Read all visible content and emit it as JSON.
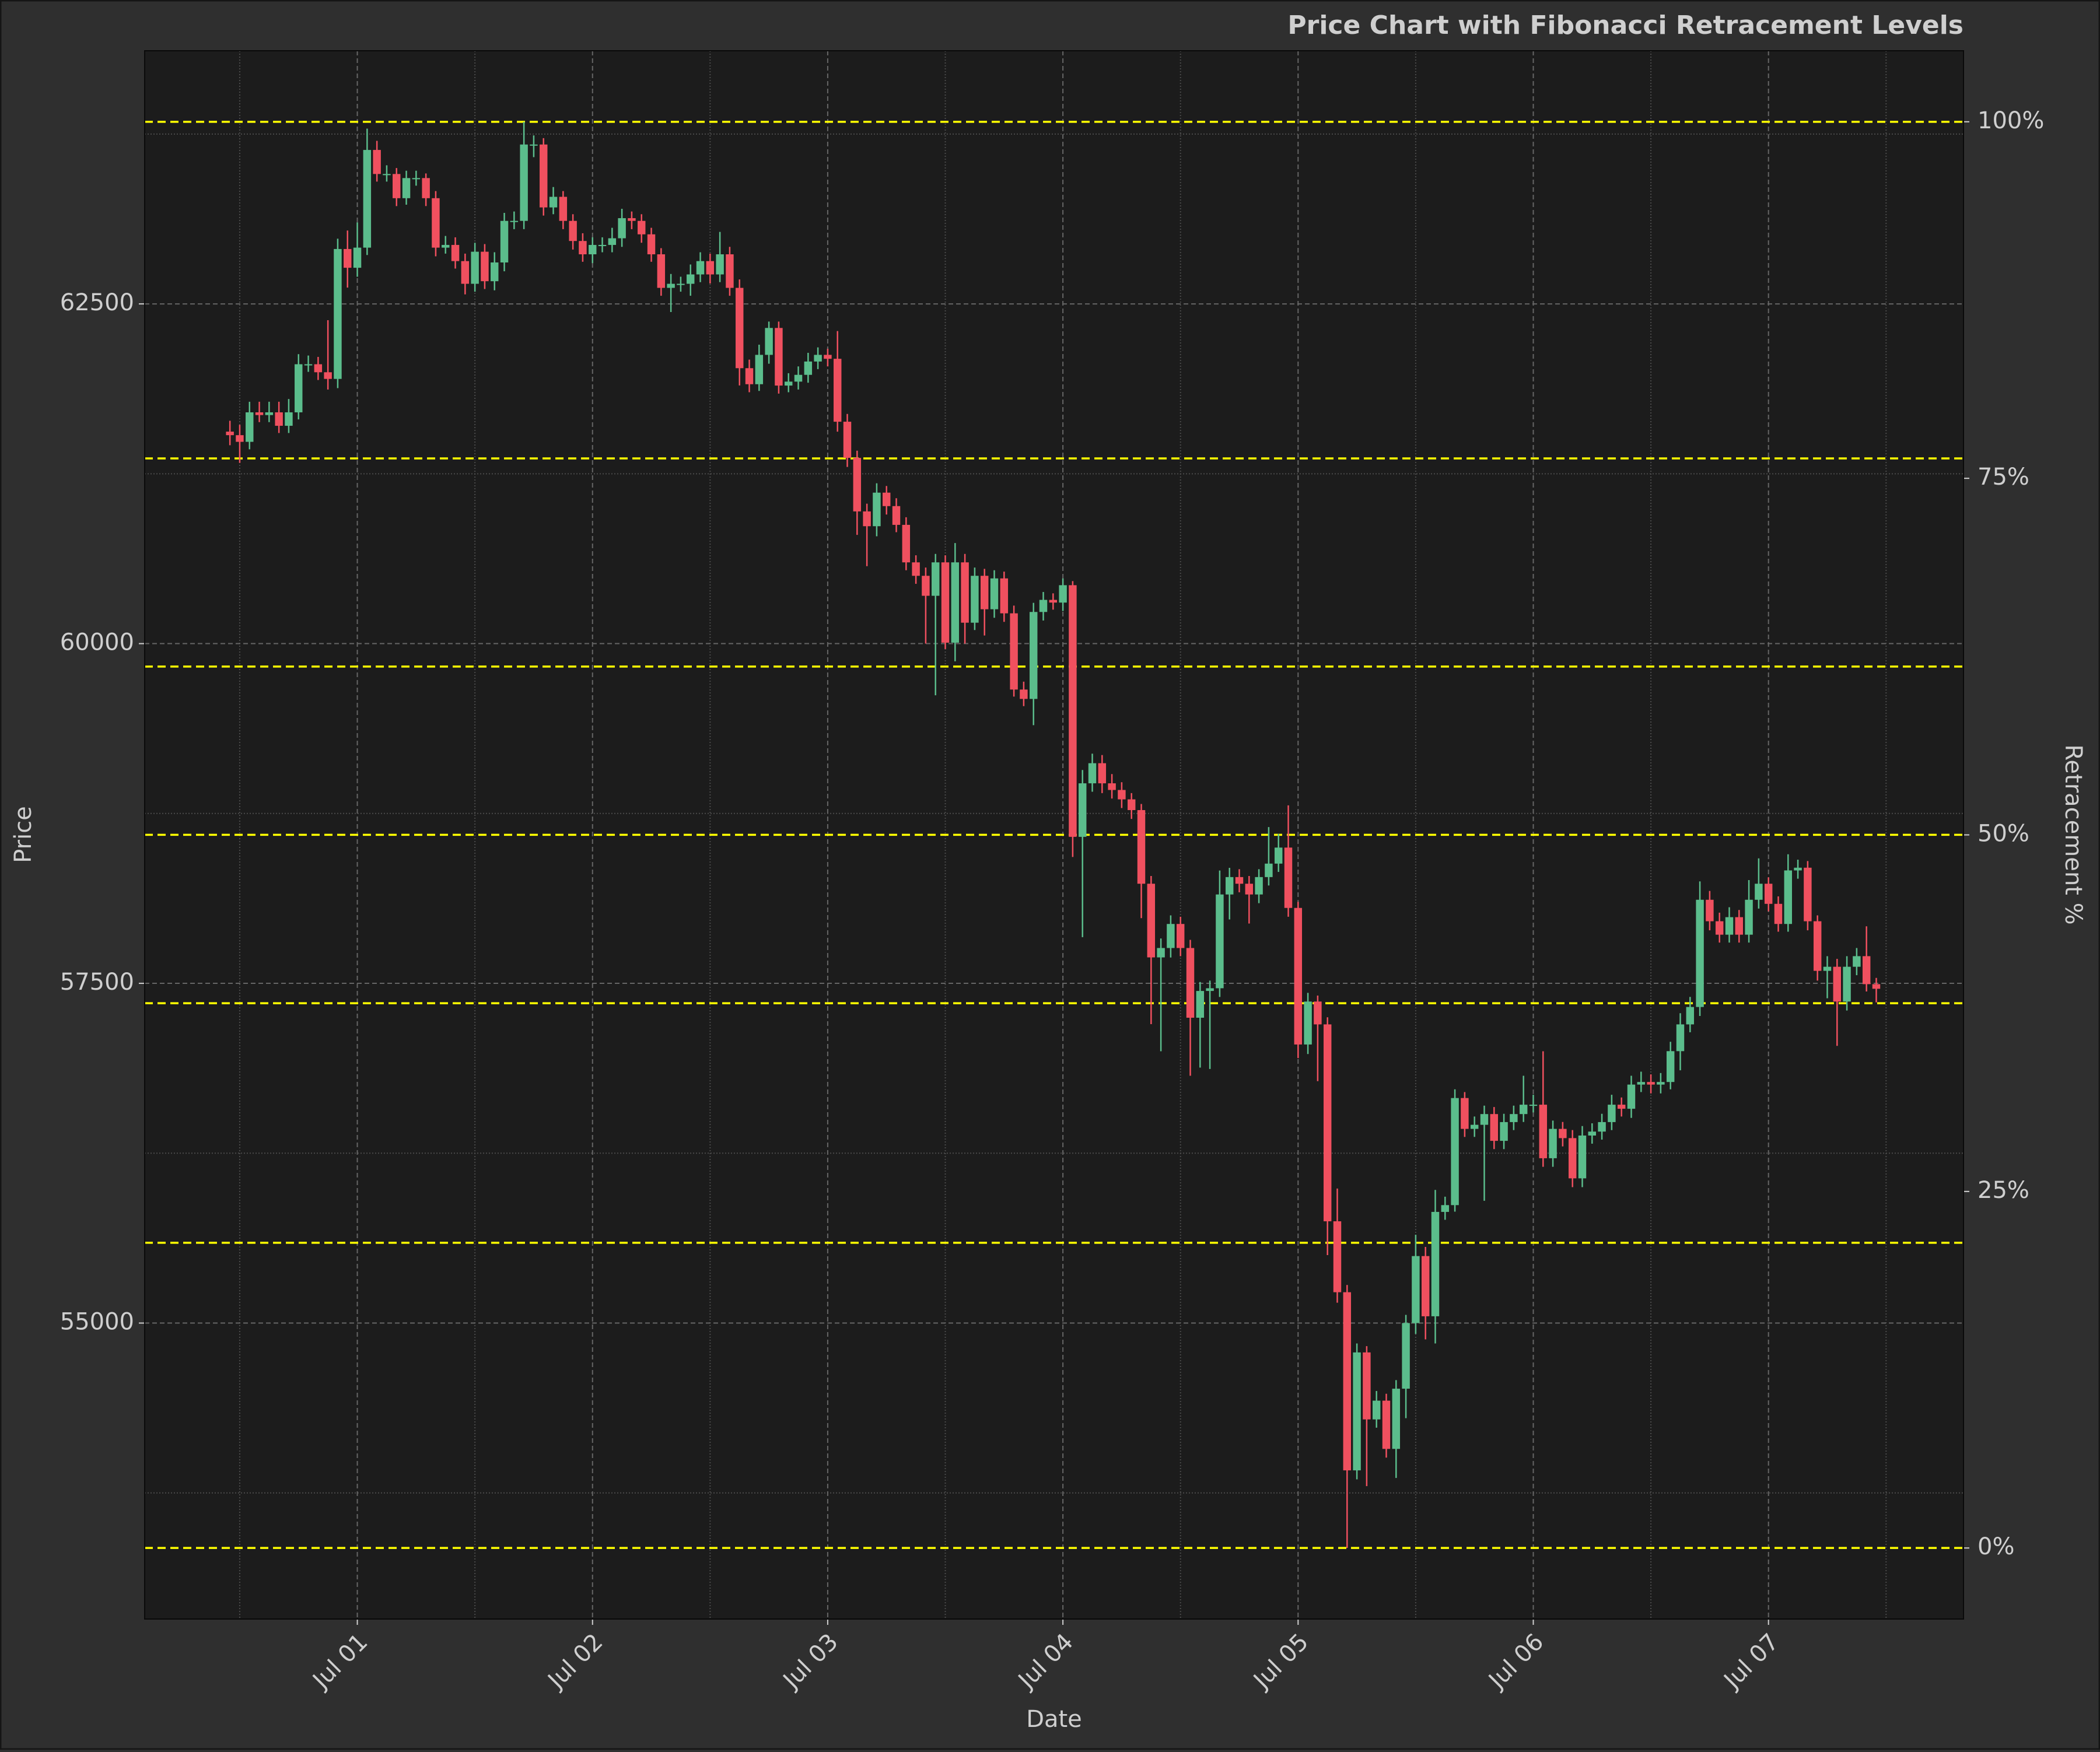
{
  "chart_data": {
    "type": "candlestick",
    "title": "Price Chart with Fibonacci Retracement Levels",
    "xlabel": "Date",
    "ylabel": "Price",
    "y2label": "Retracement %",
    "up_color": "#5bbd8c",
    "down_color": "#f0505f",
    "fib_color": "#ffff00",
    "grid": true,
    "xlim": [
      -8.7,
      176.9
    ],
    "xticks": [
      {
        "value": 13,
        "label": "Jul 01"
      },
      {
        "value": 37,
        "label": "Jul 02"
      },
      {
        "value": 61,
        "label": "Jul 03"
      },
      {
        "value": 85,
        "label": "Jul 04"
      },
      {
        "value": 109,
        "label": "Jul 05"
      },
      {
        "value": 133,
        "label": "Jul 06"
      },
      {
        "value": 157,
        "label": "Jul 07"
      }
    ],
    "xticks_minor": [
      1,
      25,
      49,
      73,
      97,
      121,
      145,
      169
    ],
    "ylim": [
      52822,
      64363
    ],
    "yticks": [
      55000,
      57500,
      60000,
      62500
    ],
    "yticks_minor": [
      53750,
      56250,
      58750,
      61250,
      63750
    ],
    "y2lim": [
      -4.98,
      104.98
    ],
    "y2ticks": [
      {
        "value": 0,
        "label": "0%"
      },
      {
        "value": 25,
        "label": "25%"
      },
      {
        "value": 50,
        "label": "50%"
      },
      {
        "value": 75,
        "label": "75%"
      },
      {
        "value": 100,
        "label": "100%"
      }
    ],
    "fib_levels": [
      63840,
      61363,
      59831,
      58593,
      57354,
      55591,
      53345
    ],
    "open": [
      61560,
      61534,
      61485,
      61702,
      61682,
      61702,
      61603,
      61702,
      62056,
      62056,
      61997,
      61948,
      62904,
      62766,
      62914,
      63633,
      63456,
      63456,
      63278,
      63426,
      63426,
      63278,
      62914,
      62934,
      62815,
      62648,
      62884,
      62667,
      62805,
      63111,
      63111,
      63673,
      63673,
      63210,
      63288,
      63111,
      62963,
      62865,
      62934,
      62934,
      62983,
      63131,
      63111,
      63012,
      62865,
      62618,
      62648,
      62648,
      62717,
      62815,
      62717,
      62865,
      62618,
      62027,
      61909,
      62125,
      62323,
      61899,
      61928,
      61978,
      62076,
      62125,
      62096,
      61633,
      61367,
      60973,
      60864,
      61111,
      61012,
      60874,
      60598,
      60499,
      60352,
      60598,
      60007,
      60598,
      60154,
      60499,
      60253,
      60480,
      60223,
      59662,
      59593,
      60233,
      60322,
      60302,
      60430,
      58578,
      58972,
      59120,
      58972,
      58923,
      58854,
      58775,
      58233,
      57691,
      57760,
      57937,
      57760,
      57247,
      57444,
      57464,
      58154,
      58282,
      58233,
      58154,
      58282,
      58381,
      58499,
      58055,
      57050,
      57366,
      57198,
      55749,
      55227,
      53916,
      54784,
      54291,
      54429,
      54074,
      54517,
      55000,
      55493,
      55050,
      55818,
      55868,
      56656,
      56429,
      56459,
      56538,
      56341,
      56479,
      56538,
      56607,
      56607,
      56213,
      56429,
      56361,
      56065,
      56380,
      56409,
      56479,
      56607,
      56577,
      56755,
      56774,
      56755,
      56774,
      57001,
      57198,
      57326,
      58115,
      57957,
      57858,
      57987,
      57858,
      58115,
      58233,
      58085,
      57937,
      58331,
      58351,
      57957,
      57592,
      57622,
      57366,
      57622,
      57700,
      57494
    ],
    "high": [
      61640,
      61610,
      61780,
      61780,
      61780,
      61780,
      61800,
      62130,
      62120,
      62110,
      62380,
      62980,
      63040,
      63100,
      63790,
      63700,
      63520,
      63500,
      63480,
      63480,
      63460,
      63330,
      63000,
      62990,
      62870,
      62950,
      62940,
      62880,
      63170,
      63180,
      63840,
      63740,
      63720,
      63360,
      63330,
      63160,
      63020,
      62990,
      62990,
      63060,
      63200,
      63180,
      63160,
      63060,
      62910,
      62720,
      62700,
      62790,
      62880,
      62870,
      63030,
      62920,
      62680,
      62090,
      62200,
      62370,
      62370,
      61990,
      62040,
      62140,
      62180,
      62170,
      62300,
      61690,
      61420,
      61030,
      61180,
      61160,
      61070,
      60930,
      60650,
      60560,
      60660,
      60650,
      60740,
      60660,
      60560,
      60550,
      60540,
      60530,
      60280,
      59720,
      60300,
      60380,
      60370,
      60480,
      60460,
      59070,
      59190,
      59180,
      59040,
      58980,
      58900,
      58820,
      58290,
      57830,
      58000,
      57990,
      57820,
      57510,
      57520,
      58330,
      58350,
      58340,
      58290,
      58340,
      58650,
      58600,
      58810,
      58100,
      57430,
      57410,
      57250,
      55990,
      55280,
      54850,
      54830,
      54500,
      54480,
      54580,
      55060,
      55650,
      55560,
      55980,
      55930,
      56720,
      56700,
      56520,
      56600,
      56590,
      56540,
      56600,
      56820,
      56680,
      57000,
      56490,
      56480,
      56420,
      56450,
      56470,
      56540,
      56680,
      56660,
      56820,
      56850,
      56830,
      56840,
      57070,
      57280,
      57400,
      58250,
      58180,
      58020,
      58060,
      58040,
      58260,
      58420,
      58280,
      58140,
      58450,
      58410,
      58400,
      58000,
      57700,
      57680,
      57700,
      57760,
      57920,
      57540
    ],
    "low": [
      61460,
      61330,
      61430,
      61630,
      61630,
      61550,
      61550,
      61650,
      62000,
      61940,
      61870,
      61880,
      62620,
      62700,
      62860,
      63400,
      63400,
      63220,
      63230,
      63370,
      63220,
      62850,
      62870,
      62760,
      62570,
      62590,
      62610,
      62600,
      62740,
      63050,
      63050,
      63580,
      63150,
      63160,
      63050,
      62900,
      62810,
      62800,
      62880,
      62880,
      62920,
      63050,
      62950,
      62810,
      62560,
      62440,
      62590,
      62560,
      62660,
      62650,
      62660,
      62560,
      61900,
      61850,
      61860,
      62060,
      61840,
      61850,
      61870,
      61920,
      62020,
      62040,
      61560,
      61300,
      60800,
      60570,
      60790,
      60950,
      60820,
      60540,
      60440,
      60000,
      59620,
      59960,
      59870,
      60000,
      60100,
      60060,
      60190,
      60160,
      59610,
      59540,
      59400,
      60170,
      60250,
      60240,
      58430,
      57840,
      58910,
      58900,
      58860,
      58790,
      58710,
      57980,
      57200,
      57000,
      57690,
      57700,
      56820,
      56880,
      56870,
      57400,
      57970,
      58170,
      57940,
      58090,
      58220,
      58320,
      57990,
      56950,
      56980,
      56780,
      55500,
      55150,
      53345,
      53850,
      53800,
      54230,
      54010,
      53860,
      54300,
      54920,
      54880,
      54850,
      55760,
      55820,
      56370,
      56370,
      55900,
      56280,
      56280,
      56420,
      56480,
      56550,
      56150,
      56150,
      56300,
      56000,
      56000,
      56320,
      56350,
      56420,
      56520,
      56510,
      56700,
      56690,
      56690,
      56720,
      56860,
      57140,
      57260,
      57890,
      57800,
      57800,
      57800,
      57800,
      58050,
      58030,
      57880,
      57880,
      58270,
      57890,
      57520,
      57390,
      57040,
      57300,
      57560,
      57440,
      57360
    ],
    "close": [
      61534,
      61485,
      61702,
      61682,
      61702,
      61603,
      61702,
      62056,
      62056,
      61997,
      61948,
      62904,
      62766,
      62914,
      63633,
      63456,
      63456,
      63278,
      63426,
      63426,
      63278,
      62914,
      62934,
      62815,
      62648,
      62884,
      62667,
      62805,
      63111,
      63111,
      63673,
      63673,
      63210,
      63288,
      63111,
      62963,
      62865,
      62934,
      62934,
      62983,
      63131,
      63111,
      63012,
      62865,
      62618,
      62648,
      62648,
      62717,
      62815,
      62717,
      62865,
      62618,
      62027,
      61909,
      62125,
      62323,
      61899,
      61928,
      61978,
      62076,
      62125,
      62096,
      61633,
      61367,
      60973,
      60864,
      61111,
      61012,
      60874,
      60598,
      60499,
      60352,
      60598,
      60007,
      60598,
      60154,
      60499,
      60253,
      60480,
      60223,
      59662,
      59593,
      60233,
      60322,
      60302,
      60430,
      58578,
      58972,
      59120,
      58972,
      58923,
      58854,
      58775,
      58233,
      57691,
      57760,
      57937,
      57760,
      57247,
      57444,
      57464,
      58154,
      58282,
      58233,
      58154,
      58282,
      58381,
      58499,
      58055,
      57050,
      57366,
      57198,
      55749,
      55227,
      53916,
      54784,
      54291,
      54429,
      54074,
      54517,
      55000,
      55493,
      55050,
      55818,
      55868,
      56656,
      56429,
      56459,
      56538,
      56341,
      56479,
      56538,
      56607,
      56607,
      56213,
      56429,
      56361,
      56065,
      56380,
      56409,
      56479,
      56607,
      56577,
      56755,
      56774,
      56755,
      56774,
      57001,
      57198,
      57326,
      58115,
      57957,
      57858,
      57987,
      57858,
      58115,
      58233,
      58085,
      57937,
      58331,
      58351,
      57957,
      57592,
      57622,
      57366,
      57622,
      57700,
      57494,
      57460
    ]
  }
}
